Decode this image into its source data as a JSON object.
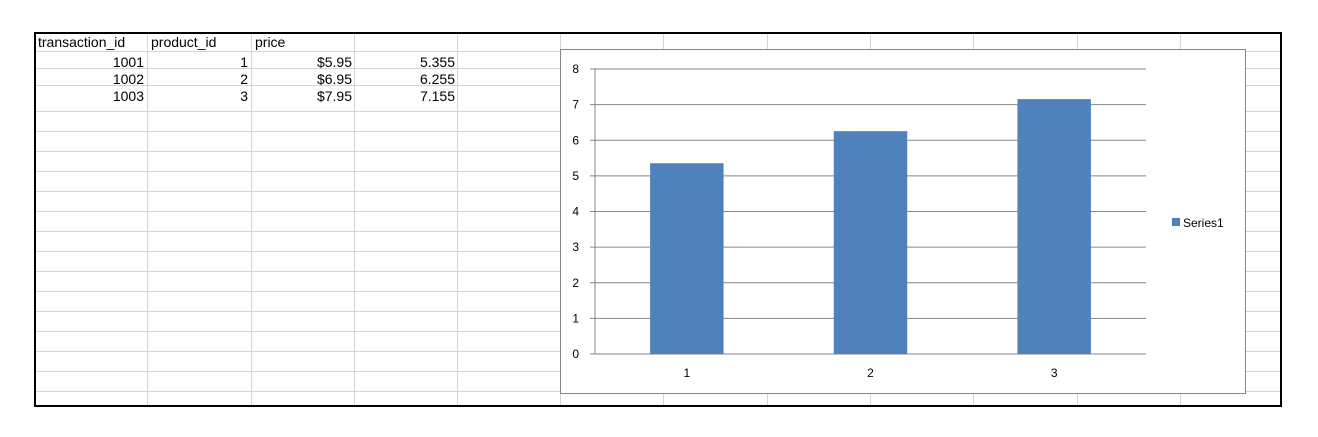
{
  "sheet": {
    "headers": [
      "transaction_id",
      "product_id",
      "price"
    ],
    "rows": [
      {
        "transaction_id": "1001",
        "product_id": "1",
        "price": "$5.95",
        "extra": "5.355"
      },
      {
        "transaction_id": "1002",
        "product_id": "2",
        "price": "$6.95",
        "extra": "6.255"
      },
      {
        "transaction_id": "1003",
        "product_id": "3",
        "price": "$7.95",
        "extra": "7.155"
      }
    ]
  },
  "chart_data": {
    "type": "bar",
    "categories": [
      "1",
      "2",
      "3"
    ],
    "series": [
      {
        "name": "Series1",
        "values": [
          5.355,
          6.255,
          7.155
        ],
        "color": "#4f81bd"
      }
    ],
    "ylim": [
      0,
      8
    ],
    "yticks": [
      0,
      1,
      2,
      3,
      4,
      5,
      6,
      7,
      8
    ],
    "grid": true,
    "legend_position": "right",
    "title": "",
    "xlabel": "",
    "ylabel": ""
  }
}
